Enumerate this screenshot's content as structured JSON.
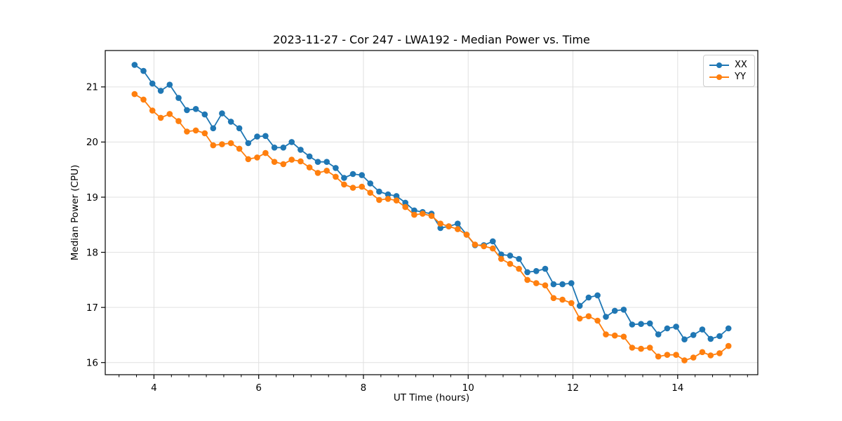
{
  "chart_data": {
    "type": "line",
    "title": "2023-11-27 - Cor 247 - LWA192 - Median Power vs. Time",
    "xlabel": "UT Time (hours)",
    "ylabel": "Median Power (CPU)",
    "xlim": [
      3.07,
      15.53
    ],
    "ylim": [
      15.78,
      21.66
    ],
    "xticks": [
      4,
      6,
      8,
      10,
      12,
      14
    ],
    "yticks": [
      16,
      17,
      18,
      19,
      20,
      21
    ],
    "x_minor_step": 0.33333,
    "grid": true,
    "grid_color": "#e0e0e0",
    "spine_color": "#000000",
    "legend_position": "upper right",
    "x": [
      3.63,
      3.8,
      3.97,
      4.13,
      4.3,
      4.47,
      4.63,
      4.8,
      4.97,
      5.13,
      5.3,
      5.47,
      5.63,
      5.8,
      5.97,
      6.13,
      6.3,
      6.47,
      6.63,
      6.8,
      6.97,
      7.13,
      7.3,
      7.47,
      7.63,
      7.8,
      7.97,
      8.13,
      8.3,
      8.47,
      8.63,
      8.8,
      8.97,
      9.13,
      9.3,
      9.47,
      9.63,
      9.8,
      9.97,
      10.13,
      10.3,
      10.47,
      10.63,
      10.8,
      10.97,
      11.13,
      11.3,
      11.47,
      11.63,
      11.8,
      11.97,
      12.13,
      12.3,
      12.47,
      12.63,
      12.8,
      12.97,
      13.13,
      13.3,
      13.47,
      13.63,
      13.8,
      13.97,
      14.13,
      14.3,
      14.47,
      14.63,
      14.8,
      14.97
    ],
    "series": [
      {
        "name": "XX",
        "color": "#1f77b4",
        "values": [
          21.4,
          21.29,
          21.06,
          20.93,
          21.04,
          20.8,
          20.58,
          20.6,
          20.5,
          20.25,
          20.52,
          20.37,
          20.25,
          19.98,
          20.1,
          20.11,
          19.9,
          19.9,
          20.0,
          19.86,
          19.74,
          19.64,
          19.64,
          19.53,
          19.35,
          19.42,
          19.4,
          19.25,
          19.1,
          19.05,
          19.02,
          18.9,
          18.76,
          18.73,
          18.7,
          18.44,
          18.47,
          18.52,
          18.32,
          18.13,
          18.13,
          18.2,
          17.96,
          17.94,
          17.88,
          17.64,
          17.66,
          17.7,
          17.42,
          17.42,
          17.44,
          17.03,
          17.18,
          17.22,
          16.83,
          16.94,
          16.96,
          16.69,
          16.7,
          16.71,
          16.51,
          16.62,
          16.65,
          16.42,
          16.5,
          16.6,
          16.43,
          16.48,
          16.62
        ]
      },
      {
        "name": "YY",
        "color": "#ff7f0e",
        "values": [
          20.87,
          20.77,
          20.57,
          20.44,
          20.51,
          20.38,
          20.19,
          20.21,
          20.16,
          19.94,
          19.96,
          19.98,
          19.88,
          19.69,
          19.72,
          19.8,
          19.64,
          19.6,
          19.68,
          19.65,
          19.54,
          19.44,
          19.48,
          19.37,
          19.23,
          19.17,
          19.19,
          19.08,
          18.95,
          18.97,
          18.94,
          18.82,
          18.68,
          18.7,
          18.66,
          18.52,
          18.47,
          18.42,
          18.32,
          18.14,
          18.11,
          18.07,
          17.88,
          17.79,
          17.7,
          17.5,
          17.44,
          17.4,
          17.17,
          17.14,
          17.08,
          16.8,
          16.84,
          16.76,
          16.51,
          16.49,
          16.47,
          16.27,
          16.25,
          16.27,
          16.11,
          16.14,
          16.14,
          16.04,
          16.09,
          16.19,
          16.13,
          16.17,
          16.3
        ]
      }
    ]
  }
}
